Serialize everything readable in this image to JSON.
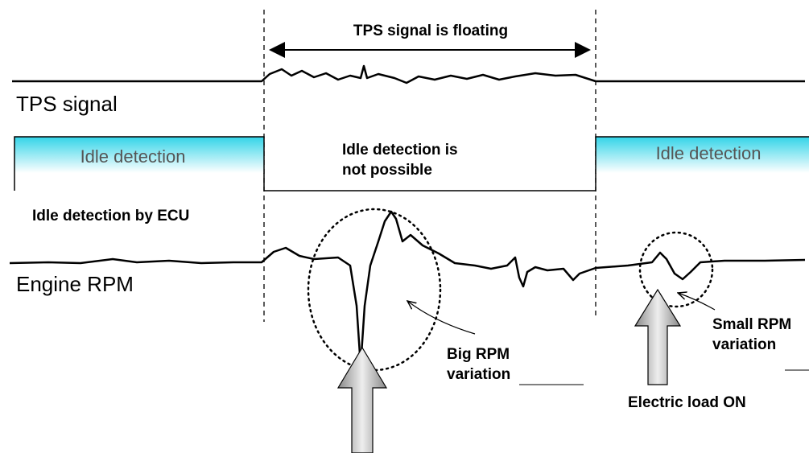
{
  "span_label": "TPS signal is floating",
  "signals": {
    "tps": "TPS signal",
    "rpm": "Engine RPM"
  },
  "idle": {
    "left": "Idle detection",
    "middle": [
      "Idle detection is",
      "not possible"
    ],
    "right": "Idle detection",
    "caption": "Idle detection by ECU"
  },
  "annotations": {
    "big": [
      "Big RPM",
      "variation"
    ],
    "small": [
      "Small RPM",
      "variation"
    ],
    "load": "Electric load ON"
  }
}
